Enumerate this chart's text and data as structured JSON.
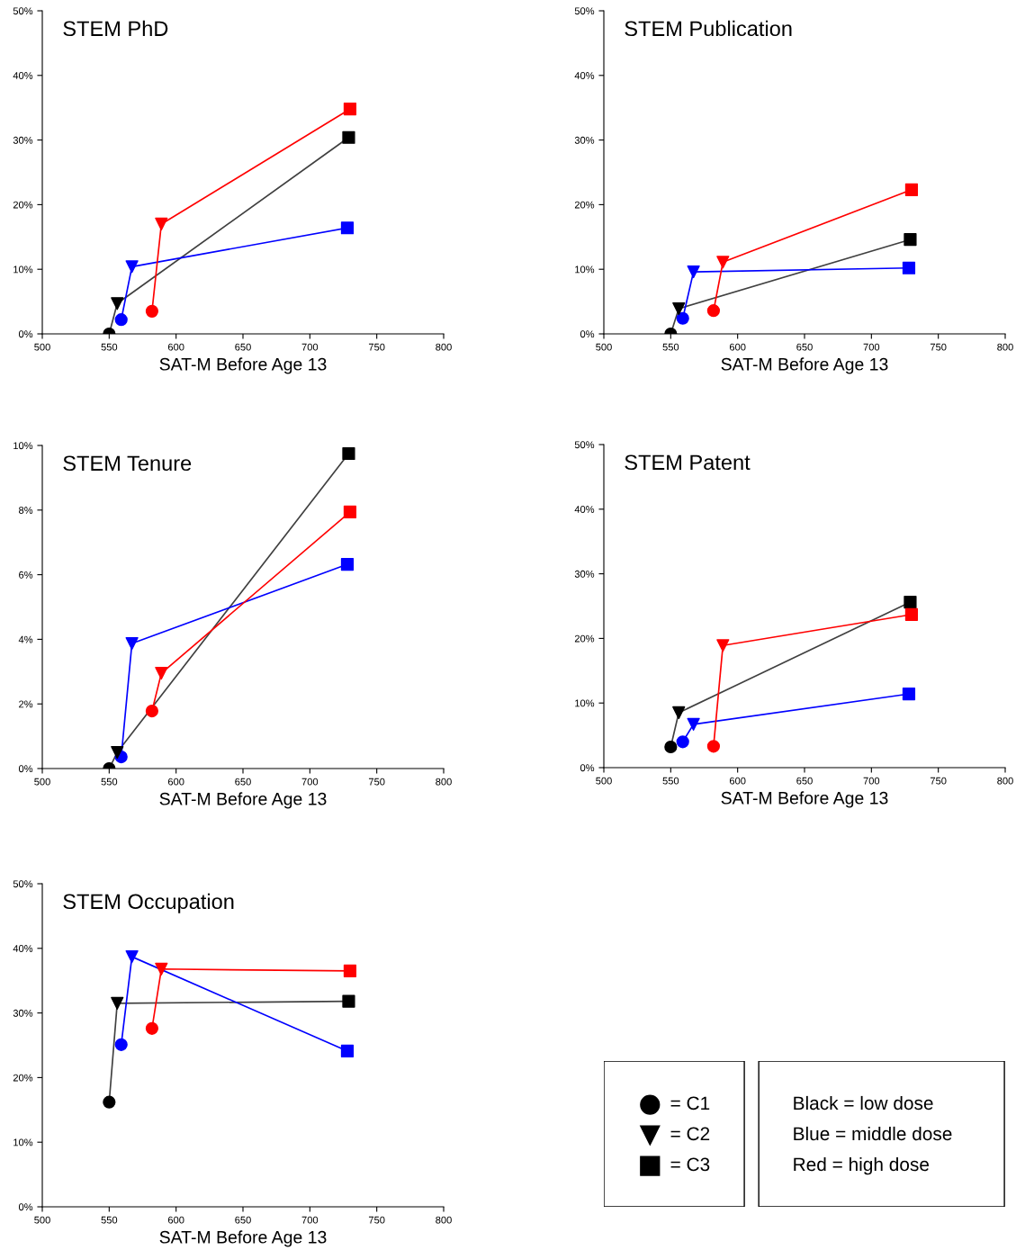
{
  "chart_data": [
    {
      "type": "line",
      "title": "STEM PhD",
      "xlabel": "SAT-M Before Age 13",
      "xlim": [
        500,
        800
      ],
      "xticks": [
        500,
        550,
        600,
        650,
        700,
        750,
        800
      ],
      "ylim": [
        0,
        50
      ],
      "yticks": [
        {
          "value": 0,
          "label": "0%"
        },
        {
          "value": 10,
          "label": "10%"
        },
        {
          "value": 20,
          "label": "20%"
        },
        {
          "value": 30,
          "label": "30%"
        },
        {
          "value": 40,
          "label": "40%"
        },
        {
          "value": 50,
          "label": "50%"
        }
      ],
      "series": [
        {
          "color": "#404040",
          "x": [
            550,
            556,
            729
          ],
          "values": [
            0,
            4.7,
            30.4
          ]
        },
        {
          "color": "#0000ff",
          "x": [
            559,
            567,
            728
          ],
          "values": [
            2.2,
            10.4,
            16.4
          ]
        },
        {
          "color": "#ff0000",
          "x": [
            582,
            589,
            730
          ],
          "values": [
            3.5,
            17.0,
            34.8
          ]
        },
        {
          "type": "scatter",
          "marker": "circle",
          "x": [
            550,
            559,
            582
          ],
          "values": [
            0,
            2.2,
            3.5
          ],
          "colors": [
            "#000000",
            "#0000ff",
            "#ff0000"
          ]
        },
        {
          "type": "scatter",
          "marker": "triangle",
          "x": [
            556,
            567,
            589
          ],
          "values": [
            4.7,
            10.4,
            17.0
          ],
          "colors": [
            "#000000",
            "#0000ff",
            "#ff0000"
          ]
        },
        {
          "type": "scatter",
          "marker": "square",
          "x": [
            729,
            728,
            730
          ],
          "values": [
            30.4,
            16.4,
            34.8
          ],
          "colors": [
            "#000000",
            "#0000ff",
            "#ff0000"
          ]
        }
      ]
    },
    {
      "type": "line",
      "title": "STEM Publication",
      "xlabel": "SAT-M Before Age 13",
      "xlim": [
        500,
        800
      ],
      "xticks": [
        500,
        550,
        600,
        650,
        700,
        750,
        800
      ],
      "ylim": [
        0,
        50
      ],
      "yticks": [
        {
          "value": 0,
          "label": "0%"
        },
        {
          "value": 10,
          "label": "10%"
        },
        {
          "value": 20,
          "label": "20%"
        },
        {
          "value": 30,
          "label": "30%"
        },
        {
          "value": 40,
          "label": "40%"
        },
        {
          "value": 50,
          "label": "50%"
        }
      ],
      "series": [
        {
          "color": "#404040",
          "x": [
            550,
            556,
            729
          ],
          "values": [
            0,
            3.9,
            14.6
          ]
        },
        {
          "color": "#0000ff",
          "x": [
            559,
            567,
            728
          ],
          "values": [
            2.4,
            9.6,
            10.2
          ]
        },
        {
          "color": "#ff0000",
          "x": [
            582,
            589,
            730
          ],
          "values": [
            3.6,
            11.1,
            22.3
          ]
        },
        {
          "type": "scatter",
          "marker": "circle",
          "x": [
            550,
            559,
            582
          ],
          "values": [
            0,
            2.4,
            3.6
          ],
          "colors": [
            "#000000",
            "#0000ff",
            "#ff0000"
          ]
        },
        {
          "type": "scatter",
          "marker": "triangle",
          "x": [
            556,
            567,
            589
          ],
          "values": [
            3.9,
            9.6,
            11.1
          ],
          "colors": [
            "#000000",
            "#0000ff",
            "#ff0000"
          ]
        },
        {
          "type": "scatter",
          "marker": "square",
          "x": [
            729,
            728,
            730
          ],
          "values": [
            14.6,
            10.2,
            22.3
          ],
          "colors": [
            "#000000",
            "#0000ff",
            "#ff0000"
          ]
        }
      ]
    },
    {
      "type": "line",
      "title": "STEM Tenure",
      "xlabel": "SAT-M Before Age 13",
      "xlim": [
        500,
        800
      ],
      "xticks": [
        500,
        550,
        600,
        650,
        700,
        750,
        800
      ],
      "ylim": [
        0,
        10
      ],
      "yticks": [
        {
          "value": 0,
          "label": "0%"
        },
        {
          "value": 2,
          "label": "2%"
        },
        {
          "value": 4,
          "label": "4%"
        },
        {
          "value": 6,
          "label": "6%"
        },
        {
          "value": 8,
          "label": "8%"
        },
        {
          "value": 10,
          "label": "10%"
        }
      ],
      "series": [
        {
          "color": "#404040",
          "x": [
            550,
            556,
            729
          ],
          "values": [
            0,
            0.5,
            9.75
          ]
        },
        {
          "color": "#0000ff",
          "x": [
            559,
            567,
            728
          ],
          "values": [
            0.36,
            3.87,
            6.32
          ]
        },
        {
          "color": "#ff0000",
          "x": [
            582,
            589,
            730
          ],
          "values": [
            1.78,
            2.95,
            7.94
          ]
        },
        {
          "type": "scatter",
          "marker": "circle",
          "x": [
            550,
            559,
            582
          ],
          "values": [
            0,
            0.36,
            1.78
          ],
          "colors": [
            "#000000",
            "#0000ff",
            "#ff0000"
          ]
        },
        {
          "type": "scatter",
          "marker": "triangle",
          "x": [
            556,
            567,
            589
          ],
          "values": [
            0.5,
            3.87,
            2.95
          ],
          "colors": [
            "#000000",
            "#0000ff",
            "#ff0000"
          ]
        },
        {
          "type": "scatter",
          "marker": "square",
          "x": [
            729,
            728,
            730
          ],
          "values": [
            9.75,
            6.32,
            7.94
          ],
          "colors": [
            "#000000",
            "#0000ff",
            "#ff0000"
          ]
        }
      ]
    },
    {
      "type": "line",
      "title": "STEM Patent",
      "xlabel": "SAT-M Before Age 13",
      "xlim": [
        500,
        800
      ],
      "xticks": [
        500,
        550,
        600,
        650,
        700,
        750,
        800
      ],
      "ylim": [
        0,
        50
      ],
      "yticks": [
        {
          "value": 0,
          "label": "0%"
        },
        {
          "value": 10,
          "label": "10%"
        },
        {
          "value": 20,
          "label": "20%"
        },
        {
          "value": 30,
          "label": "30%"
        },
        {
          "value": 40,
          "label": "40%"
        },
        {
          "value": 50,
          "label": "50%"
        }
      ],
      "series": [
        {
          "color": "#404040",
          "x": [
            550,
            556,
            729
          ],
          "values": [
            3.2,
            8.5,
            25.6
          ]
        },
        {
          "color": "#0000ff",
          "x": [
            559,
            567,
            728
          ],
          "values": [
            4.0,
            6.7,
            11.4
          ]
        },
        {
          "color": "#ff0000",
          "x": [
            582,
            589,
            730
          ],
          "values": [
            3.3,
            18.9,
            23.7
          ]
        },
        {
          "type": "scatter",
          "marker": "circle",
          "x": [
            550,
            559,
            582
          ],
          "values": [
            3.2,
            4.0,
            3.3
          ],
          "colors": [
            "#000000",
            "#0000ff",
            "#ff0000"
          ]
        },
        {
          "type": "scatter",
          "marker": "triangle",
          "x": [
            556,
            567,
            589
          ],
          "values": [
            8.5,
            6.7,
            18.9
          ],
          "colors": [
            "#000000",
            "#0000ff",
            "#ff0000"
          ]
        },
        {
          "type": "scatter",
          "marker": "square",
          "x": [
            729,
            728,
            730
          ],
          "values": [
            25.6,
            11.4,
            23.7
          ],
          "colors": [
            "#000000",
            "#0000ff",
            "#ff0000"
          ]
        }
      ]
    },
    {
      "type": "line",
      "title": "STEM Occupation",
      "xlabel": "SAT-M Before Age 13",
      "xlim": [
        500,
        800
      ],
      "xticks": [
        500,
        550,
        600,
        650,
        700,
        750,
        800
      ],
      "ylim": [
        0,
        50
      ],
      "yticks": [
        {
          "value": 0,
          "label": "0%"
        },
        {
          "value": 10,
          "label": "10%"
        },
        {
          "value": 20,
          "label": "20%"
        },
        {
          "value": 30,
          "label": "30%"
        },
        {
          "value": 40,
          "label": "40%"
        },
        {
          "value": 50,
          "label": "50%"
        }
      ],
      "series": [
        {
          "color": "#404040",
          "x": [
            550,
            556,
            729
          ],
          "values": [
            16.2,
            31.5,
            31.8
          ]
        },
        {
          "color": "#0000ff",
          "x": [
            559,
            567,
            728
          ],
          "values": [
            25.1,
            38.7,
            24.1
          ]
        },
        {
          "color": "#ff0000",
          "x": [
            582,
            589,
            730
          ],
          "values": [
            27.6,
            36.8,
            36.5
          ]
        },
        {
          "type": "scatter",
          "marker": "circle",
          "x": [
            550,
            559,
            582
          ],
          "values": [
            16.2,
            25.1,
            27.6
          ],
          "colors": [
            "#000000",
            "#0000ff",
            "#ff0000"
          ]
        },
        {
          "type": "scatter",
          "marker": "triangle",
          "x": [
            556,
            567,
            589
          ],
          "values": [
            31.5,
            38.7,
            36.8
          ],
          "colors": [
            "#000000",
            "#0000ff",
            "#ff0000"
          ]
        },
        {
          "type": "scatter",
          "marker": "square",
          "x": [
            729,
            728,
            730
          ],
          "values": [
            31.8,
            24.1,
            36.5
          ],
          "colors": [
            "#000000",
            "#0000ff",
            "#ff0000"
          ]
        }
      ]
    },
    {
      "type": "other",
      "annotations": [
        "= C1",
        "= C2",
        "= C3",
        "Black = low dose",
        "Blue = middle dose",
        "Red = high dose"
      ]
    }
  ]
}
